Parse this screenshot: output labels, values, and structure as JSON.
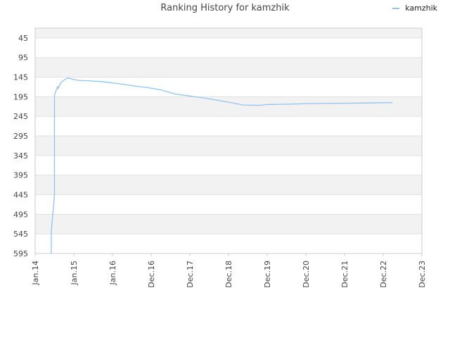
{
  "chart_data": {
    "type": "line",
    "title": "Ranking History for kamzhik",
    "xlabel": "",
    "ylabel": "",
    "y_inverted": true,
    "ylim": [
      595,
      20
    ],
    "y_ticks": [
      45,
      95,
      145,
      195,
      245,
      295,
      345,
      395,
      445,
      495,
      545,
      595
    ],
    "x_ticks": [
      "Jan.14",
      "Jan.15",
      "Jan.16",
      "Dec.16",
      "Dec.17",
      "Dec.18",
      "Dec.19",
      "Dec.20",
      "Dec.21",
      "Dec.22",
      "Dec.23"
    ],
    "grid": true,
    "legend_position": "top-right",
    "colors": {
      "line": "#90c4f0",
      "band": "#f2f2f2",
      "grid": "#e0e0e0",
      "axis": "#cccccc",
      "text": "#444444"
    },
    "series": [
      {
        "name": "kamzhik",
        "points": [
          [
            "2014-06",
            595
          ],
          [
            "2014-06",
            545
          ],
          [
            "2014-06",
            550
          ],
          [
            "2014-06",
            540
          ],
          [
            "2014-07",
            445
          ],
          [
            "2014-07",
            380
          ],
          [
            "2014-07",
            190
          ],
          [
            "2014-08",
            168
          ],
          [
            "2014-08",
            175
          ],
          [
            "2014-09",
            158
          ],
          [
            "2014-10",
            152
          ],
          [
            "2014-11",
            147
          ],
          [
            "2015-02",
            153
          ],
          [
            "2015-07",
            155
          ],
          [
            "2015-10",
            157
          ],
          [
            "2016-03",
            162
          ],
          [
            "2016-08",
            168
          ],
          [
            "2016-12",
            172
          ],
          [
            "2017-04",
            178
          ],
          [
            "2017-08",
            188
          ],
          [
            "2018-05",
            198
          ],
          [
            "2018-12",
            208
          ],
          [
            "2019-05",
            216
          ],
          [
            "2019-10",
            217
          ],
          [
            "2019-12",
            215
          ],
          [
            "2020-06",
            214
          ],
          [
            "2020-12",
            213
          ],
          [
            "2021-06",
            212
          ],
          [
            "2022-06",
            211
          ],
          [
            "2023-03",
            210
          ]
        ]
      }
    ]
  }
}
